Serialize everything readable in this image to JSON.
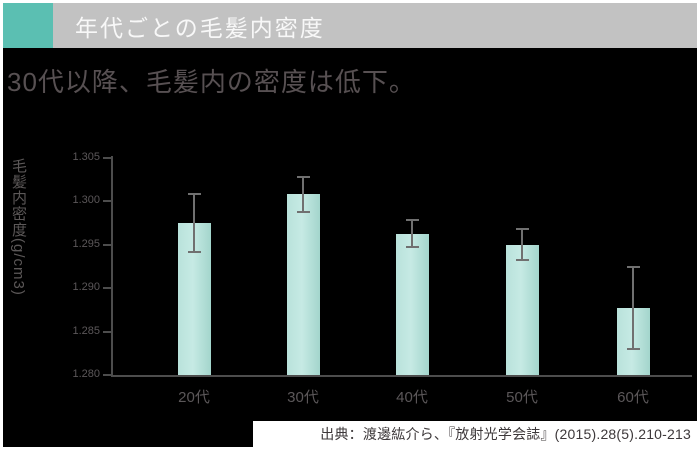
{
  "header": {
    "title": "年代ごとの毛髪内密度",
    "accent_color": "#5bbfb2",
    "bar_color": "#c2c2c2"
  },
  "subtitle": {
    "text": "30代以降、毛髪内の密度は低下。"
  },
  "chart_data": {
    "type": "bar",
    "title": "年代ごとの毛髪内密度",
    "categories": [
      "20代",
      "30代",
      "40代",
      "50代",
      "60代"
    ],
    "values": [
      1.2975,
      1.3008,
      1.2963,
      1.295,
      1.2877
    ],
    "error_bars": [
      0.0033,
      0.002,
      0.0015,
      0.0018,
      0.0047
    ],
    "xlabel": "",
    "ylabel": "毛髪内密度(g/cm3)",
    "ylim": [
      1.28,
      1.305
    ],
    "ytick_step": 0.005,
    "yticks": [
      "1.305",
      "1.300",
      "1.295",
      "1.290",
      "1.285",
      "1.280"
    ],
    "bar_color": "#aedcd4",
    "error_bar_color": "#707070",
    "plot_background": "#000000",
    "grid": false,
    "legend": false
  },
  "source": {
    "text": "出典：渡邊紘介ら、『放射光学会誌』(2015).28(5).210-213"
  }
}
